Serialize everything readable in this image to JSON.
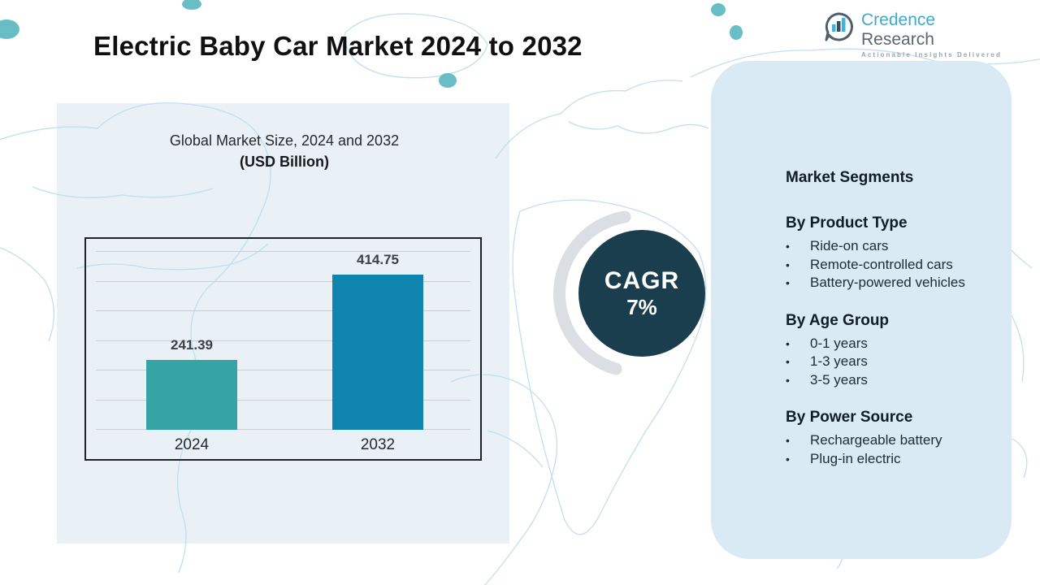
{
  "page": {
    "title": "Electric Baby Car Market 2024 to 2032"
  },
  "logo": {
    "icon": "bar-chart-bubble-icon",
    "name_primary": "Credence",
    "name_secondary": "Research",
    "tagline": "Actionable Insights Delivered"
  },
  "chart_data": {
    "type": "bar",
    "title": "Global Market Size, 2024 and 2032",
    "subtitle": "(USD Billion)",
    "categories": [
      "2024",
      "2032"
    ],
    "values": [
      241.39,
      414.75
    ],
    "bar_colors": [
      "#35a4a4",
      "#0e84ae"
    ],
    "xlabel": "",
    "ylabel": "",
    "ylim": [
      100,
      460
    ],
    "grid_step": 60,
    "grid": true,
    "legend": false
  },
  "cagr": {
    "label": "CAGR",
    "value": "7%"
  },
  "segments": {
    "title": "Market Segments",
    "bullet": "•",
    "groups": [
      {
        "heading": "By Product Type",
        "items": [
          "Ride-on cars",
          "Remote-controlled cars",
          "Battery-powered vehicles"
        ]
      },
      {
        "heading": "By Age Group",
        "items": [
          "0-1 years",
          "1-3 years",
          "3-5 years"
        ]
      },
      {
        "heading": "By Power Source",
        "items": [
          "Rechargeable battery",
          "Plug-in electric"
        ]
      }
    ]
  },
  "colors": {
    "bar_2024": "#35a4a4",
    "bar_2032": "#0e84ae",
    "cagr_circle": "#1b3e4e",
    "left_panel": "#e9f1f7",
    "right_panel": "#daeaf5",
    "map_stroke": "#bcdcea",
    "logo_blue": "#3fa9cc",
    "logo_slate": "#5b6770"
  }
}
